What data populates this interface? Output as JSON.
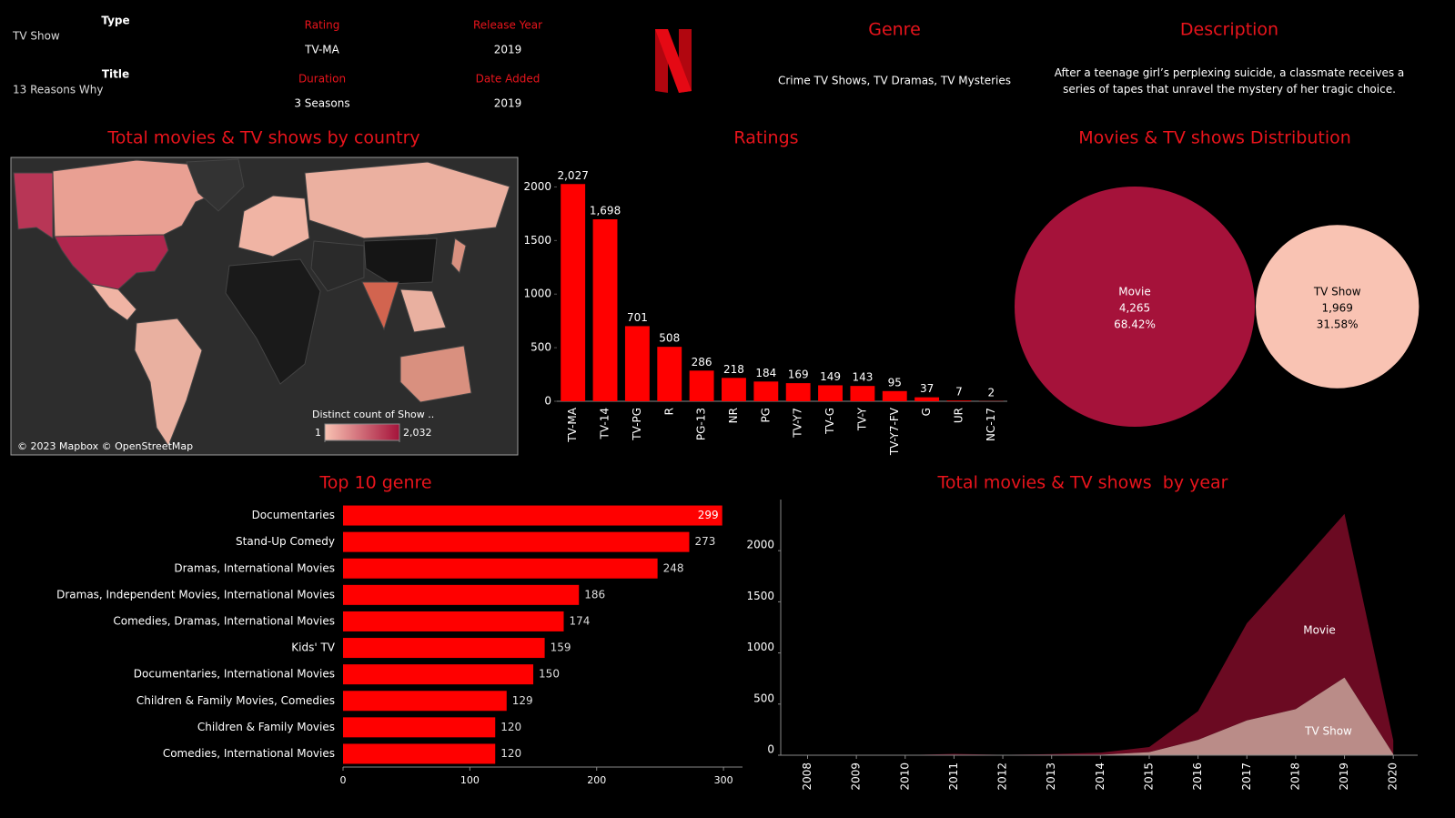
{
  "header": {
    "type_label": "Type",
    "type": "TV Show",
    "title_label": "Title",
    "title": "13 Reasons Why",
    "rating_label": "Rating",
    "rating": "TV-MA",
    "release_year_label": "Release Year",
    "release_year": 2019,
    "duration_label": "Duration",
    "duration": "3 Seasons",
    "date_added_label": "Date Added",
    "date_added": 2019,
    "genre_label": "Genre",
    "genre": "Crime TV Shows, TV Dramas, TV Mysteries",
    "description_label": "Description",
    "description": "After a teenage girl’s perplexing suicide, a classmate receives a series of tapes that unravel the mystery of her tragic choice."
  },
  "chart_data": [
    {
      "type": "map",
      "title": "Total movies & TV shows by country",
      "legend_title": "Distinct count of Show ..",
      "legend_ticks": [
        1,
        {
          "value": 2032,
          "label": "2,032"
        }
      ],
      "colorscale": [
        "#f9c3b3",
        "#a5123a"
      ],
      "attribution": "© 2023 Mapbox © OpenStreetMap"
    },
    {
      "type": "bar",
      "title": "Ratings",
      "categories": [
        "TV-MA",
        "TV-14",
        "TV-PG",
        "R",
        "PG-13",
        "NR",
        "PG",
        "TV-Y7",
        "TV-G",
        "TV-Y",
        "TV-Y7-FV",
        "G",
        "UR",
        "NC-17"
      ],
      "values": [
        2027,
        1698,
        701,
        508,
        286,
        218,
        184,
        169,
        149,
        143,
        95,
        37,
        7,
        2
      ],
      "value_labels": [
        "2,027",
        "1,698",
        "701",
        "508",
        "286",
        "218",
        "184",
        "169",
        "149",
        "143",
        "95",
        "37",
        "7",
        "2"
      ],
      "color": "#ff0000",
      "ylim": [
        0,
        2250
      ],
      "yticks": [
        0,
        500,
        1000,
        1500,
        2000
      ]
    },
    {
      "type": "bubble",
      "title": "Movies & TV shows Distribution",
      "categories": [
        "Movie",
        "TV Show"
      ],
      "values": [
        4265,
        1969
      ],
      "value_labels": [
        "4,265",
        "1,969"
      ],
      "percent_labels": [
        "68.42%",
        "31.58%"
      ],
      "colors": [
        "#a5123a",
        "#f9c3b3"
      ]
    },
    {
      "type": "hbar",
      "title": "Top 10 genre",
      "categories": [
        "Documentaries",
        "Stand-Up Comedy",
        "Dramas, International Movies",
        "Dramas, Independent Movies, International Movies",
        "Comedies, Dramas, International Movies",
        "Kids' TV",
        "Documentaries, International Movies",
        "Children & Family Movies, Comedies",
        "Children & Family Movies",
        "Comedies, International Movies"
      ],
      "values": [
        299,
        273,
        248,
        186,
        174,
        159,
        150,
        129,
        120,
        120
      ],
      "color": "#ff0000",
      "xlim": [
        0,
        315
      ],
      "xticks": [
        0,
        100,
        200,
        300
      ]
    },
    {
      "type": "stacked-area",
      "title": "Total movies & TV shows  by year",
      "x": [
        2008,
        2009,
        2010,
        2011,
        2012,
        2013,
        2014,
        2015,
        2016,
        2017,
        2018,
        2019,
        2020
      ],
      "series": [
        {
          "name": "TV Show",
          "color": "#c4938f",
          "values": [
            1,
            0,
            0,
            0,
            0,
            5,
            5,
            30,
            150,
            340,
            450,
            760,
            10
          ]
        },
        {
          "name": "Movie",
          "color": "#6b0a22",
          "values": [
            1,
            2,
            1,
            13,
            3,
            6,
            20,
            50,
            280,
            950,
            1370,
            1600,
            135
          ]
        }
      ],
      "xlim": [
        2007.45,
        2020.5
      ],
      "xticks": [
        2008,
        2009,
        2010,
        2011,
        2012,
        2013,
        2014,
        2015,
        2016,
        2017,
        2018,
        2019,
        2020
      ],
      "ylim": [
        0,
        2500
      ],
      "yticks": [
        0,
        500,
        1000,
        1500,
        2000
      ]
    }
  ]
}
